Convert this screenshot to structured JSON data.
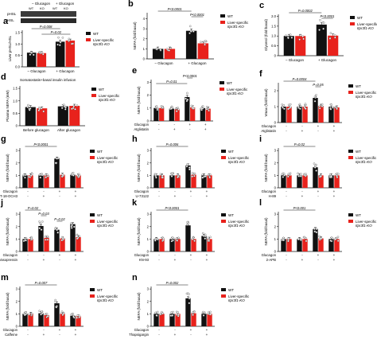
{
  "legend": {
    "wt": "WT",
    "ko_line1": "Liver-specific",
    "ko_line2": "Itpr3f1-KO"
  },
  "colors": {
    "wt": "#111111",
    "ko": "#e8221c",
    "dot": "#ffffff"
  },
  "western_blot": {
    "group_labels": [
      "– Glucagon",
      "+ Glucagon"
    ],
    "genotype_labels": [
      "WT",
      "KO",
      "WT",
      "KO"
    ],
    "band_labels": [
      "pHSL",
      "HSL"
    ]
  },
  "chart_data": [
    {
      "id": "a",
      "type": "bar",
      "ylabel": "Liver pHSL/HSL",
      "yticks": [
        "0.0",
        "0.5",
        "1.0",
        "1.5"
      ],
      "ylim": [
        0,
        1.6
      ],
      "categories": [
        "– Glucagon",
        "+ Glucagon"
      ],
      "series": [
        {
          "name": "WT",
          "values": [
            0.62,
            1.1
          ]
        },
        {
          "name": "Liver-specific Itpr3f1-KO",
          "values": [
            0.6,
            1.15
          ]
        }
      ],
      "annotations": [
        {
          "text": "P=0.008",
          "between": [
            0,
            2
          ]
        },
        {
          "text": "P=0.02",
          "between": [
            1,
            3
          ]
        }
      ],
      "xtick_rows": [],
      "row_labels": []
    },
    {
      "id": "b",
      "type": "bar",
      "ylabel": "NEFA (fold basal)",
      "yticks": [
        "0",
        "1",
        "2",
        "3",
        "4"
      ],
      "ylim": [
        0,
        4.6
      ],
      "categories": [
        "– Glucagon",
        "+ Glucagon"
      ],
      "series": [
        {
          "name": "WT",
          "values": [
            1.0,
            2.8
          ]
        },
        {
          "name": "Liver-specific Itpr3f1-KO",
          "values": [
            1.0,
            1.55
          ]
        }
      ],
      "annotations": [
        {
          "text": "P<0.0001",
          "between": [
            0,
            2
          ]
        },
        {
          "text": "P<0.0001",
          "between": [
            2,
            3
          ]
        }
      ],
      "xtick_rows": [],
      "row_labels": []
    },
    {
      "id": "c",
      "type": "bar",
      "ylabel": "Glycerol (fold basal)",
      "yticks": [
        "0",
        "0.5",
        "1.0",
        "1.5",
        "2.0"
      ],
      "ylim": [
        0,
        2.1
      ],
      "categories": [
        "– Glucagon",
        "+ Glucagon"
      ],
      "series": [
        {
          "name": "WT",
          "values": [
            1.0,
            1.58
          ]
        },
        {
          "name": "Liver-specific Itpr3f1-KO",
          "values": [
            1.0,
            1.02
          ]
        }
      ],
      "annotations": [
        {
          "text": "P=0.0002",
          "between": [
            0,
            2
          ]
        },
        {
          "text": "P<0.0001",
          "between": [
            2,
            3
          ]
        }
      ],
      "xtick_rows": [],
      "row_labels": []
    },
    {
      "id": "d",
      "type": "bar",
      "ylabel": "Plasma NEFA (mM)",
      "title": "Somatostatin+basal insulin infusion",
      "yticks": [
        "0",
        "0.5",
        "1.0",
        "1.5"
      ],
      "ylim": [
        0,
        1.6
      ],
      "categories": [
        "Before glucagon",
        "After glucagon"
      ],
      "series": [
        {
          "name": "WT",
          "values": [
            0.75,
            0.78
          ]
        },
        {
          "name": "Liver-specific Itpr3f1-KO",
          "values": [
            0.7,
            0.8
          ]
        }
      ],
      "annotations": [],
      "xtick_rows": [],
      "row_labels": []
    },
    {
      "id": "e",
      "type": "bar",
      "ylabel": "NEFA (fold basal)",
      "yticks": [
        "0",
        "1",
        "2",
        "3"
      ],
      "ylim": [
        0,
        3.2
      ],
      "categories": [
        "1",
        "2",
        "3",
        "4"
      ],
      "series": [
        {
          "name": "WT",
          "values": [
            1.0,
            0.95,
            1.85,
            1.0
          ]
        },
        {
          "name": "Liver-specific Itpr3f1-KO",
          "values": [
            1.0,
            0.9,
            1.05,
            0.95
          ]
        }
      ],
      "annotations": [
        {
          "text": "P<0.0001",
          "between": [
            4,
            5
          ]
        },
        {
          "text": "P=0.01",
          "between": [
            0,
            4
          ]
        }
      ],
      "row_labels": [
        "Glucagon",
        "Atglistatin"
      ],
      "xtick_rows": [
        [
          "-",
          "-",
          "+",
          "+"
        ],
        [
          "-",
          "+",
          "-",
          "+"
        ]
      ]
    },
    {
      "id": "f",
      "type": "bar",
      "ylabel": "Vmax (fold basal)",
      "yticks": [
        "0",
        "1",
        "2"
      ],
      "ylim": [
        0,
        2.5
      ],
      "categories": [
        "1",
        "2",
        "3",
        "4"
      ],
      "series": [
        {
          "name": "WT",
          "values": [
            1.0,
            1.0,
            1.55,
            1.0
          ]
        },
        {
          "name": "Liver-specific Itpr3f1-KO",
          "values": [
            1.0,
            1.0,
            1.05,
            0.95
          ]
        }
      ],
      "annotations": [
        {
          "text": "P=0.0004",
          "between": [
            0,
            4
          ]
        },
        {
          "text": "P=0.05",
          "between": [
            4,
            5
          ]
        }
      ],
      "row_labels": [
        "Glucagon",
        "Atglistatin"
      ],
      "xtick_rows": [
        [
          "-",
          "-",
          "+",
          "+"
        ],
        [
          "-",
          "+",
          "-",
          "+"
        ]
      ]
    },
    {
      "id": "g",
      "type": "bar",
      "ylabel": "NEFA (fold basal)",
      "yticks": [
        "0",
        "1",
        "2",
        "3"
      ],
      "ylim": [
        0,
        3.2
      ],
      "categories": [
        "1",
        "2",
        "3",
        "4"
      ],
      "series": [
        {
          "name": "WT",
          "values": [
            1.0,
            1.0,
            2.35,
            1.05
          ]
        },
        {
          "name": "Liver-specific Itpr3f1-KO",
          "values": [
            1.0,
            1.0,
            1.05,
            1.0
          ]
        }
      ],
      "annotations": [
        {
          "text": "P<0.0001",
          "between": [
            0,
            4
          ]
        }
      ],
      "row_labels": [
        "Glucagon",
        "ET-18-OCH3"
      ],
      "xtick_rows": [
        [
          "-",
          "-",
          "+",
          "+"
        ],
        [
          "-",
          "+",
          "-",
          "+"
        ]
      ]
    },
    {
      "id": "h",
      "type": "bar",
      "ylabel": "NEFA (fold basal)",
      "yticks": [
        "0",
        "1",
        "2",
        "3"
      ],
      "ylim": [
        0,
        3.2
      ],
      "categories": [
        "1",
        "2",
        "3",
        "4"
      ],
      "series": [
        {
          "name": "WT",
          "values": [
            1.0,
            1.0,
            1.8,
            1.0
          ]
        },
        {
          "name": "Liver-specific Itpr3f1-KO",
          "values": [
            1.0,
            1.0,
            1.05,
            1.0
          ]
        }
      ],
      "annotations": [
        {
          "text": "P=0.006",
          "between": [
            0,
            4
          ]
        }
      ],
      "row_labels": [
        "Glucagon",
        "U-73122"
      ],
      "xtick_rows": [
        [
          "-",
          "-",
          "+",
          "+"
        ],
        [
          "-",
          "+",
          "-",
          "+"
        ]
      ]
    },
    {
      "id": "i",
      "type": "bar",
      "ylabel": "NEFA (fold basal)",
      "yticks": [
        "0",
        "1",
        "2",
        "3"
      ],
      "ylim": [
        0,
        3.2
      ],
      "categories": [
        "1",
        "2",
        "3",
        "4"
      ],
      "series": [
        {
          "name": "WT",
          "values": [
            1.0,
            1.0,
            1.65,
            1.0
          ]
        },
        {
          "name": "Liver-specific Itpr3f1-KO",
          "values": [
            1.0,
            1.0,
            1.0,
            1.0
          ]
        }
      ],
      "annotations": [
        {
          "text": "P=0.02",
          "between": [
            0,
            4
          ]
        }
      ],
      "row_labels": [
        "Glucagon",
        "H-89"
      ],
      "xtick_rows": [
        [
          "-",
          "-",
          "+",
          "+"
        ],
        [
          "-",
          "+",
          "-",
          "+"
        ]
      ]
    },
    {
      "id": "j",
      "type": "bar",
      "ylabel": "NEFA (fold basal)",
      "yticks": [
        "0",
        "1",
        "2",
        "3"
      ],
      "ylim": [
        0,
        3.2
      ],
      "categories": [
        "1",
        "2",
        "3",
        "4"
      ],
      "series": [
        {
          "name": "WT",
          "values": [
            1.0,
            2.05,
            1.75,
            2.2
          ]
        },
        {
          "name": "Liver-specific Itpr3f1-KO",
          "values": [
            1.0,
            1.1,
            1.05,
            1.15
          ]
        }
      ],
      "annotations": [
        {
          "text": "P=0.02",
          "between": [
            0,
            2
          ]
        },
        {
          "text": "P=0.03",
          "between": [
            2,
            3
          ]
        },
        {
          "text": "P=0.02",
          "between": [
            4,
            5
          ]
        }
      ],
      "row_labels": [
        "Glucagon",
        "Vasopressin"
      ],
      "xtick_rows": [
        [
          "-",
          "-",
          "+",
          "+"
        ],
        [
          "-",
          "+",
          "-",
          "+"
        ]
      ]
    },
    {
      "id": "k",
      "type": "bar",
      "ylabel": "NEFA (fold basal)",
      "yticks": [
        "0",
        "1",
        "2",
        "3"
      ],
      "ylim": [
        0,
        3.2
      ],
      "categories": [
        "1",
        "2",
        "3",
        "4"
      ],
      "series": [
        {
          "name": "WT",
          "values": [
            1.0,
            1.0,
            2.1,
            1.25
          ]
        },
        {
          "name": "Liver-specific Itpr3f1-KO",
          "values": [
            1.0,
            1.0,
            1.0,
            1.0
          ]
        }
      ],
      "annotations": [
        {
          "text": "P<0.0001",
          "between": [
            0,
            4
          ]
        }
      ],
      "row_labels": [
        "Glucagon",
        "KN-93"
      ],
      "xtick_rows": [
        [
          "-",
          "-",
          "+",
          "+"
        ],
        [
          "-",
          "+",
          "-",
          "+"
        ]
      ]
    },
    {
      "id": "l",
      "type": "bar",
      "ylabel": "NEFA (fold basal)",
      "yticks": [
        "0",
        "1",
        "2",
        "3"
      ],
      "ylim": [
        0,
        3.2
      ],
      "categories": [
        "1",
        "2",
        "3",
        "4"
      ],
      "series": [
        {
          "name": "WT",
          "values": [
            1.0,
            1.0,
            1.8,
            1.0
          ]
        },
        {
          "name": "Liver-specific Itpr3f1-KO",
          "values": [
            1.0,
            1.0,
            1.05,
            1.0
          ]
        }
      ],
      "annotations": [
        {
          "text": "P<0.001",
          "between": [
            0,
            4
          ]
        }
      ],
      "row_labels": [
        "Glucagon",
        "2-APB"
      ],
      "xtick_rows": [
        [
          "-",
          "-",
          "+",
          "+"
        ],
        [
          "-",
          "+",
          "-",
          "+"
        ]
      ]
    },
    {
      "id": "m",
      "type": "bar",
      "ylabel": "NEFA (fold basal)",
      "yticks": [
        "0",
        "1",
        "2",
        "3"
      ],
      "ylim": [
        0,
        3.2
      ],
      "categories": [
        "1",
        "2",
        "3",
        "4"
      ],
      "series": [
        {
          "name": "WT",
          "values": [
            1.0,
            1.05,
            1.85,
            0.85
          ]
        },
        {
          "name": "Liver-specific Itpr3f1-KO",
          "values": [
            1.0,
            0.9,
            1.0,
            0.8
          ]
        }
      ],
      "annotations": [
        {
          "text": "P=0.007",
          "between": [
            0,
            4
          ]
        }
      ],
      "row_labels": [
        "Glucagon",
        "Caffeine"
      ],
      "xtick_rows": [
        [
          "-",
          "-",
          "+",
          "+"
        ],
        [
          "-",
          "+",
          "-",
          "+"
        ]
      ]
    },
    {
      "id": "n",
      "type": "bar",
      "ylabel": "NEFA (fold basal)",
      "yticks": [
        "0",
        "1",
        "2",
        "3"
      ],
      "ylim": [
        0,
        3.2
      ],
      "categories": [
        "1",
        "2",
        "3",
        "4"
      ],
      "series": [
        {
          "name": "WT",
          "values": [
            1.0,
            1.0,
            2.25,
            1.0
          ]
        },
        {
          "name": "Liver-specific Itpr3f1-KO",
          "values": [
            1.0,
            1.0,
            1.05,
            1.0
          ]
        }
      ],
      "annotations": [
        {
          "text": "P=0.002",
          "between": [
            0,
            4
          ]
        }
      ],
      "row_labels": [
        "Glucagon",
        "Thapsigargin"
      ],
      "xtick_rows": [
        [
          "-",
          "-",
          "+",
          "+"
        ],
        [
          "-",
          "+",
          "-",
          "+"
        ]
      ]
    }
  ]
}
